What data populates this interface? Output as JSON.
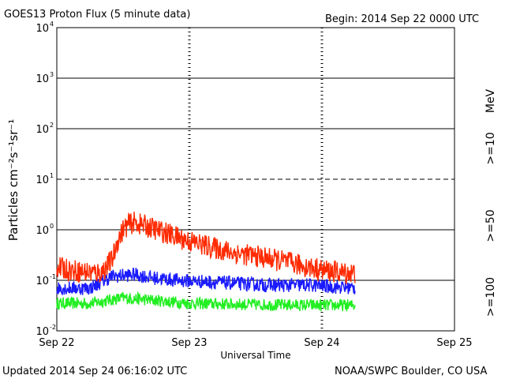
{
  "header": {
    "title": "GOES13 Proton Flux (5 minute data)",
    "begin": "Begin: 2014 Sep 22 0000 UTC"
  },
  "footer": {
    "updated": "Updated 2014 Sep 24 06:16:02 UTC",
    "credit": "NOAA/SWPC Boulder, CO USA"
  },
  "chart_data": {
    "type": "line",
    "title": "GOES13 Proton Flux (5 minute data)",
    "xlabel": "Universal Time",
    "ylabel": "Particles cm⁻²s⁻¹sr⁻¹",
    "yscale": "log",
    "ylim": [
      0.01,
      10000
    ],
    "xlim": [
      "2014-09-22 00:00",
      "2014-09-25 00:00"
    ],
    "x_ticks": [
      "Sep 22",
      "Sep 23",
      "Sep 24",
      "Sep 25"
    ],
    "y_ticks": [
      {
        "base": "10",
        "exp": "-2"
      },
      {
        "base": "10",
        "exp": "-1"
      },
      {
        "base": "10",
        "exp": "0"
      },
      {
        "base": "10",
        "exp": "1"
      },
      {
        "base": "10",
        "exp": "2"
      },
      {
        "base": "10",
        "exp": "3"
      },
      {
        "base": "10",
        "exp": "4"
      }
    ],
    "unit_label": "MeV",
    "grid": "solid horizontal lines at decades, dashed at 10^1; dotted vertical at day boundaries",
    "series": [
      {
        "name": ">=10",
        "color": "#ff2a00",
        "x": [
          "2014-09-22 00:00",
          "2014-09-22 04:00",
          "2014-09-22 08:00",
          "2014-09-22 10:00",
          "2014-09-22 11:00",
          "2014-09-22 12:00",
          "2014-09-22 13:00",
          "2014-09-22 14:00",
          "2014-09-22 16:00",
          "2014-09-22 18:00",
          "2014-09-22 20:00",
          "2014-09-22 22:00",
          "2014-09-23 00:00",
          "2014-09-23 04:00",
          "2014-09-23 08:00",
          "2014-09-23 12:00",
          "2014-09-23 16:00",
          "2014-09-23 20:00",
          "2014-09-24 00:00",
          "2014-09-24 04:00",
          "2014-09-24 06:00"
        ],
        "values": [
          0.18,
          0.15,
          0.14,
          0.25,
          0.6,
          1.0,
          1.3,
          1.4,
          1.2,
          1.0,
          0.85,
          0.7,
          0.6,
          0.45,
          0.35,
          0.3,
          0.25,
          0.2,
          0.16,
          0.14,
          0.14
        ]
      },
      {
        "name": ">=50",
        "color": "#1a1aff",
        "x": [
          "2014-09-22 00:00",
          "2014-09-22 06:00",
          "2014-09-22 10:00",
          "2014-09-22 14:00",
          "2014-09-22 18:00",
          "2014-09-22 22:00",
          "2014-09-23 06:00",
          "2014-09-23 14:00",
          "2014-09-23 22:00",
          "2014-09-24 06:00"
        ],
        "values": [
          0.07,
          0.07,
          0.12,
          0.13,
          0.11,
          0.1,
          0.09,
          0.08,
          0.08,
          0.07
        ]
      },
      {
        "name": ">=100",
        "color": "#22ee22",
        "x": [
          "2014-09-22 00:00",
          "2014-09-22 06:00",
          "2014-09-22 12:00",
          "2014-09-22 18:00",
          "2014-09-23 00:00",
          "2014-09-23 12:00",
          "2014-09-24 00:00",
          "2014-09-24 06:00"
        ],
        "values": [
          0.035,
          0.035,
          0.045,
          0.04,
          0.035,
          0.033,
          0.032,
          0.032
        ]
      }
    ]
  }
}
